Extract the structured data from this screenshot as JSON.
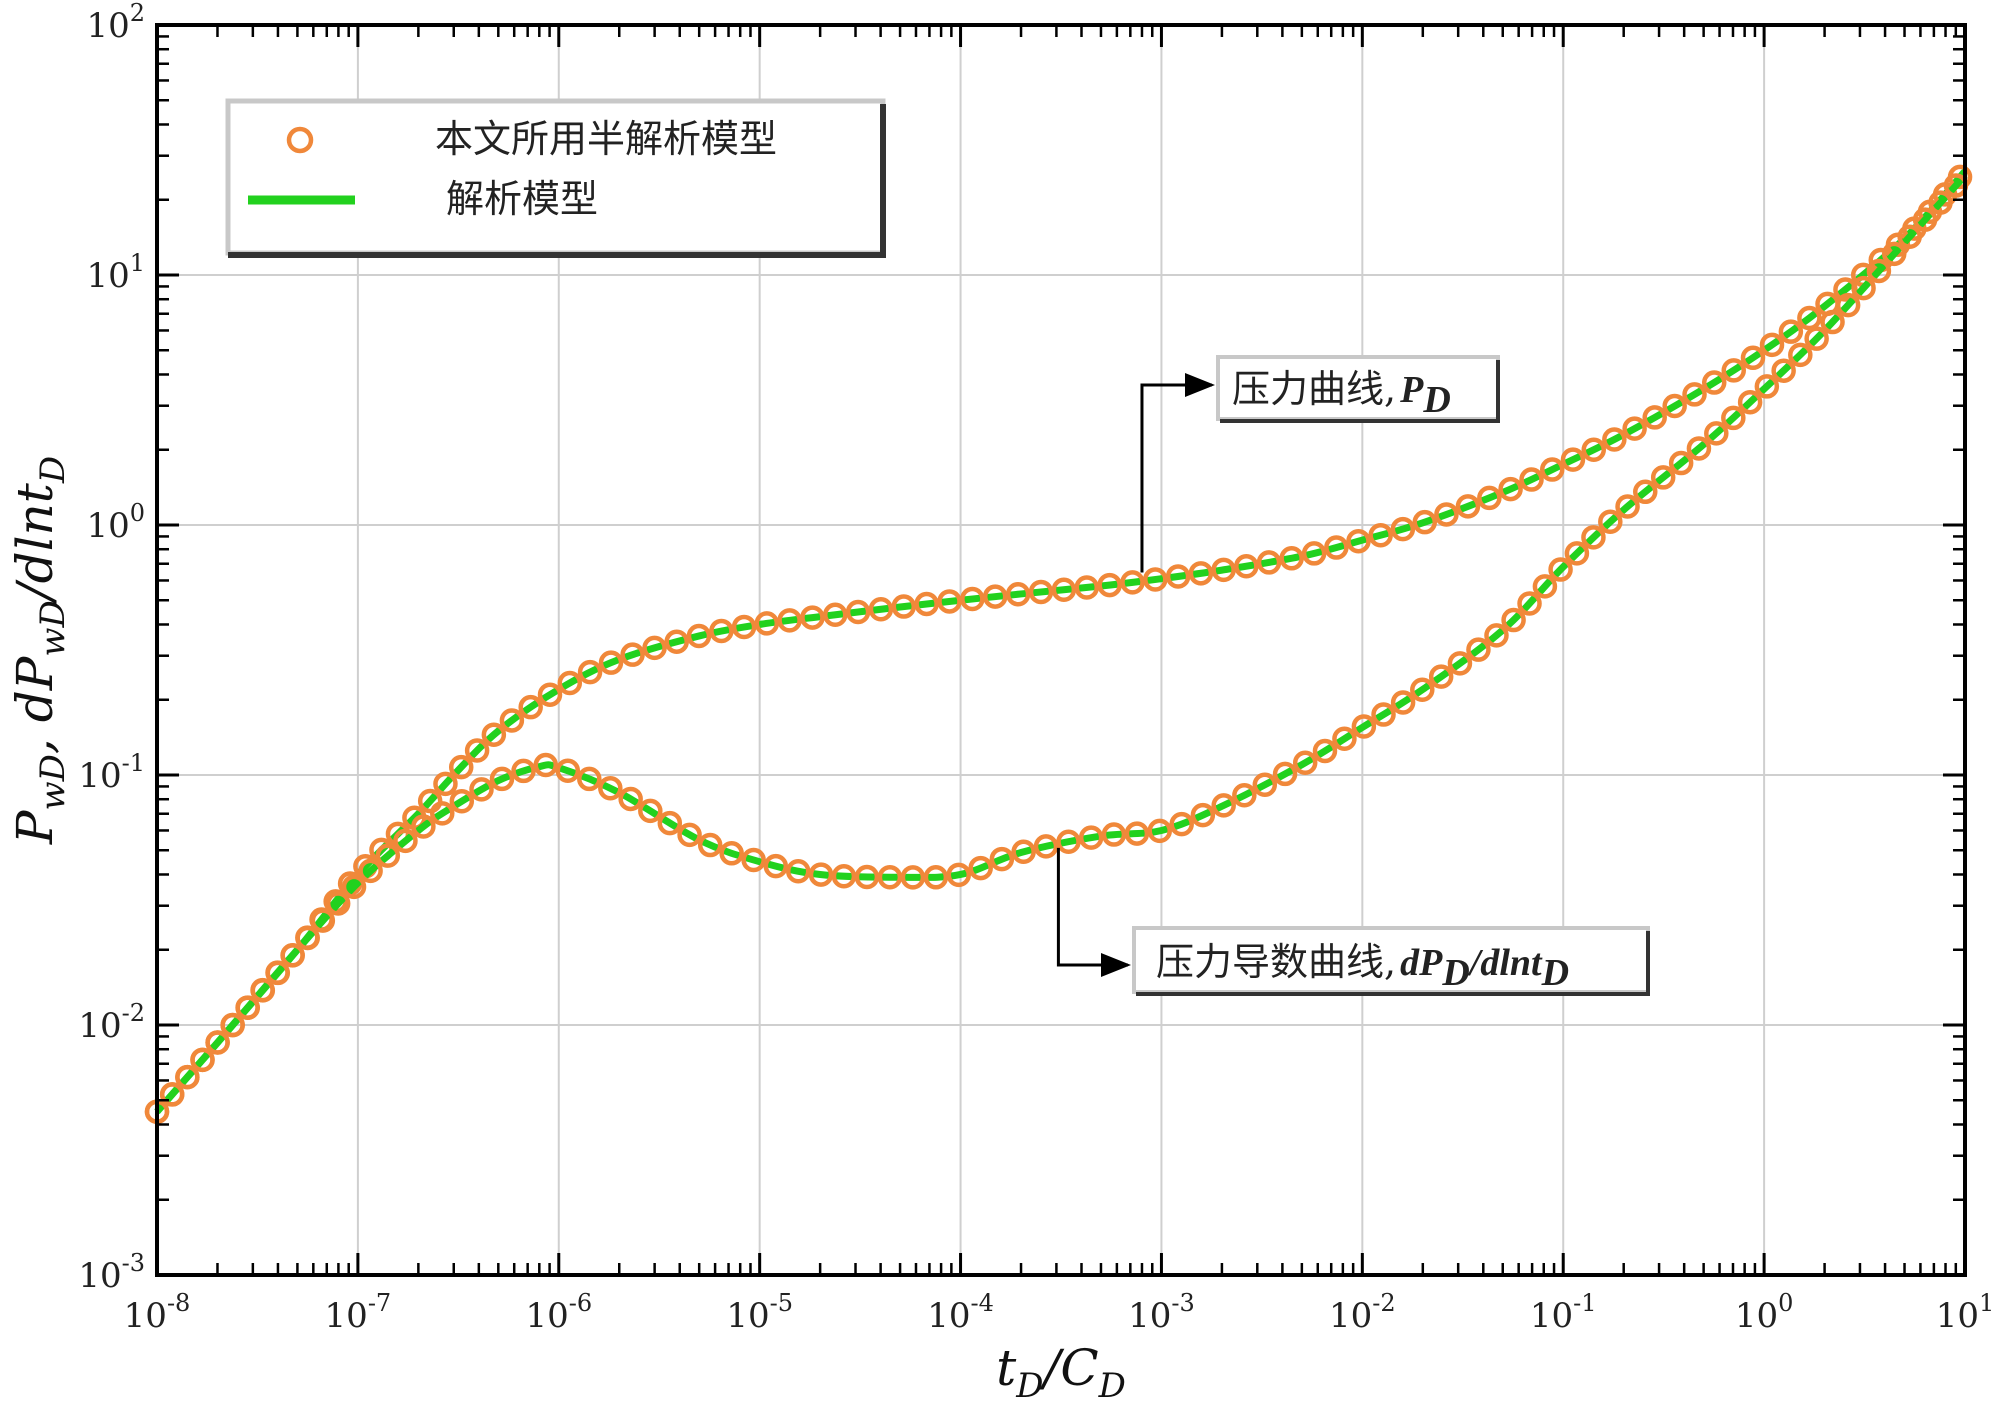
{
  "chart_data": {
    "type": "line",
    "x_scale": "log",
    "y_scale": "log",
    "xlim": [
      1e-08,
      10
    ],
    "ylim": [
      0.001,
      100
    ],
    "grid": true,
    "legend_position": "top-left",
    "xlabel": "t_D/C_D",
    "ylabel": "P_wD, dP_wD/dlnt_D",
    "x_tick_labels": [
      {
        "base": "10",
        "exp": "-8"
      },
      {
        "base": "10",
        "exp": "-7"
      },
      {
        "base": "10",
        "exp": "-6"
      },
      {
        "base": "10",
        "exp": "-5"
      },
      {
        "base": "10",
        "exp": "-4"
      },
      {
        "base": "10",
        "exp": "-3"
      },
      {
        "base": "10",
        "exp": "-2"
      },
      {
        "base": "10",
        "exp": "-1"
      },
      {
        "base": "10",
        "exp": "0"
      },
      {
        "base": "10",
        "exp": "1"
      }
    ],
    "y_tick_labels": [
      {
        "base": "10",
        "exp": "-3"
      },
      {
        "base": "10",
        "exp": "-2"
      },
      {
        "base": "10",
        "exp": "-1"
      },
      {
        "base": "10",
        "exp": "0"
      },
      {
        "base": "10",
        "exp": "1"
      },
      {
        "base": "10",
        "exp": "2"
      }
    ],
    "legend": [
      {
        "label": "本文所用半解析模型",
        "marker": "circle",
        "color": "#f0883a"
      },
      {
        "label": "解析模型",
        "marker": "line",
        "color": "#22d11e"
      }
    ],
    "annotations": [
      {
        "text": "压力曲线,",
        "symbol": "P",
        "symbol_sub": "D",
        "points_to": {
          "x": 0.0008,
          "y": 0.6
        }
      },
      {
        "text": "压力导数曲线,",
        "symbol": "dP",
        "symbol_sub": "D",
        "symbol2": "/dlnt",
        "symbol2_sub": "D",
        "points_to": {
          "x": 0.0003,
          "y": 0.055
        }
      }
    ],
    "series": [
      {
        "name": "P_D",
        "color": "#22d11e",
        "marker_color": "#f0883a",
        "points": [
          [
            1e-08,
            0.0045
          ],
          [
            2e-08,
            0.0085
          ],
          [
            5e-08,
            0.02
          ],
          [
            1e-07,
            0.04
          ],
          [
            2e-07,
            0.07
          ],
          [
            3e-07,
            0.1
          ],
          [
            5e-07,
            0.15
          ],
          [
            1e-06,
            0.22
          ],
          [
            2e-06,
            0.29
          ],
          [
            5e-06,
            0.36
          ],
          [
            1e-05,
            0.4
          ],
          [
            2e-05,
            0.43
          ],
          [
            5e-05,
            0.47
          ],
          [
            0.0001,
            0.5
          ],
          [
            0.0002,
            0.53
          ],
          [
            0.0005,
            0.57
          ],
          [
            0.001,
            0.61
          ],
          [
            0.002,
            0.66
          ],
          [
            0.005,
            0.75
          ],
          [
            0.01,
            0.87
          ],
          [
            0.02,
            1.02
          ],
          [
            0.05,
            1.35
          ],
          [
            0.1,
            1.75
          ],
          [
            0.2,
            2.3
          ],
          [
            0.5,
            3.5
          ],
          [
            1,
            5.0
          ],
          [
            2,
            7.5
          ],
          [
            5,
            14
          ],
          [
            10,
            26
          ]
        ]
      },
      {
        "name": "dP_D/dlnt_D",
        "color": "#22d11e",
        "marker_color": "#f0883a",
        "points": [
          [
            1e-08,
            0.0045
          ],
          [
            2e-08,
            0.0085
          ],
          [
            5e-08,
            0.02
          ],
          [
            1e-07,
            0.037
          ],
          [
            2e-07,
            0.06
          ],
          [
            3e-07,
            0.075
          ],
          [
            5e-07,
            0.095
          ],
          [
            8e-07,
            0.108
          ],
          [
            1e-06,
            0.107
          ],
          [
            2e-06,
            0.085
          ],
          [
            5e-06,
            0.055
          ],
          [
            1e-05,
            0.045
          ],
          [
            2e-05,
            0.04
          ],
          [
            5e-05,
            0.039
          ],
          [
            0.0001,
            0.04
          ],
          [
            0.0002,
            0.049
          ],
          [
            0.0005,
            0.057
          ],
          [
            0.001,
            0.06
          ],
          [
            0.002,
            0.075
          ],
          [
            0.005,
            0.11
          ],
          [
            0.01,
            0.155
          ],
          [
            0.02,
            0.22
          ],
          [
            0.05,
            0.38
          ],
          [
            0.1,
            0.68
          ],
          [
            0.2,
            1.15
          ],
          [
            0.5,
            2.1
          ],
          [
            1,
            3.5
          ],
          [
            2,
            6.0
          ],
          [
            5,
            13.5
          ],
          [
            10,
            25
          ]
        ]
      }
    ]
  }
}
